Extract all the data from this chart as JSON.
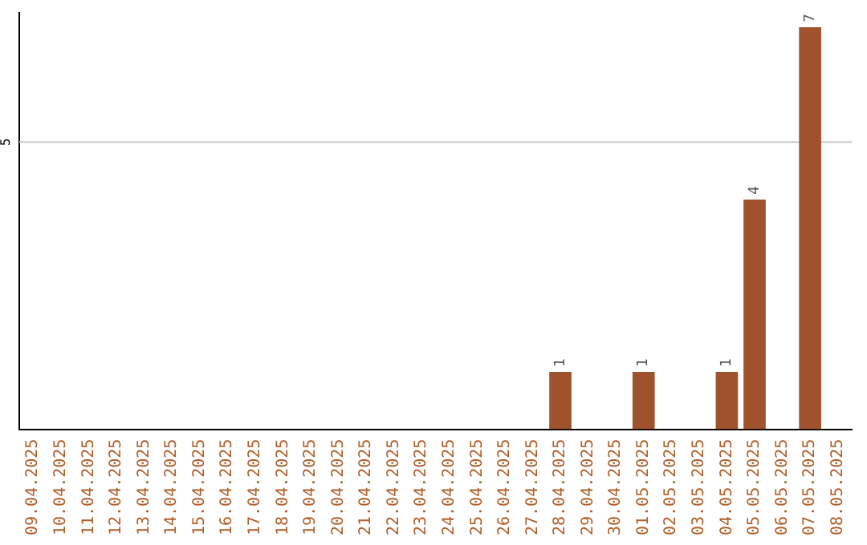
{
  "chart_data": {
    "type": "bar",
    "categories": [
      "09.04.2025",
      "10.04.2025",
      "11.04.2025",
      "12.04.2025",
      "13.04.2025",
      "14.04.2025",
      "15.04.2025",
      "16.04.2025",
      "17.04.2025",
      "18.04.2025",
      "19.04.2025",
      "20.04.2025",
      "21.04.2025",
      "22.04.2025",
      "23.04.2025",
      "24.04.2025",
      "25.04.2025",
      "26.04.2025",
      "27.04.2025",
      "28.04.2025",
      "29.04.2025",
      "30.04.2025",
      "01.05.2025",
      "02.05.2025",
      "03.05.2025",
      "04.05.2025",
      "05.05.2025",
      "06.05.2025",
      "07.05.2025",
      "08.05.2025"
    ],
    "values": [
      null,
      null,
      null,
      null,
      null,
      null,
      null,
      null,
      null,
      null,
      null,
      null,
      null,
      null,
      null,
      null,
      null,
      null,
      null,
      1,
      null,
      null,
      1,
      null,
      null,
      1,
      4,
      null,
      7,
      null
    ],
    "data_labels": true,
    "color": "#a0522d",
    "ylim": [
      0,
      7.25
    ],
    "ref_lines": [
      {
        "axis": "y",
        "value": 5,
        "label": "5",
        "color": "#cccccc"
      }
    ],
    "legend": false
  }
}
